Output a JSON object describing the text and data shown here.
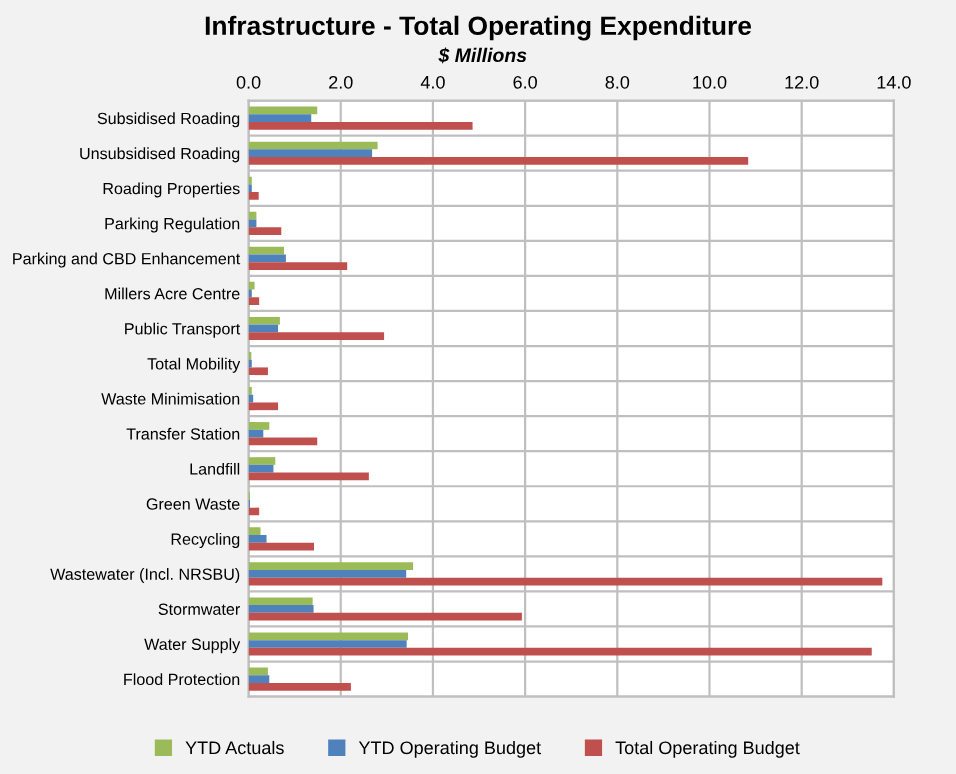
{
  "chart_data": {
    "type": "bar",
    "orientation": "horizontal",
    "title": "Infrastructure - Total Operating Expenditure",
    "xlabel": "$ Millions",
    "categories": [
      "Subsidised Roading",
      "Unsubsidised Roading",
      "Roading Properties",
      "Parking Regulation",
      "Parking and CBD Enhancement",
      "Millers Acre Centre",
      "Public Transport",
      "Total Mobility",
      "Waste Minimisation",
      "Transfer Station",
      "Landfill",
      "Green Waste",
      "Recycling",
      "Wastewater (Incl. NRSBU)",
      "Stormwater",
      "Water Supply",
      "Flood Protection"
    ],
    "series": [
      {
        "name": "YTD Actuals",
        "color": "#9bbb59",
        "values": [
          1.49,
          2.8,
          0.07,
          0.17,
          0.77,
          0.13,
          0.68,
          0.06,
          0.07,
          0.45,
          0.58,
          0.03,
          0.26,
          3.57,
          1.39,
          3.46,
          0.42
        ]
      },
      {
        "name": "YTD Operating Budget",
        "color": "#4f81bd",
        "values": [
          1.36,
          2.68,
          0.07,
          0.17,
          0.81,
          0.07,
          0.64,
          0.07,
          0.1,
          0.32,
          0.54,
          0.03,
          0.39,
          3.42,
          1.41,
          3.43,
          0.45
        ]
      },
      {
        "name": "Total Operating Budget",
        "color": "#c0504d",
        "values": [
          4.86,
          10.84,
          0.22,
          0.71,
          2.14,
          0.23,
          2.94,
          0.42,
          0.64,
          1.49,
          2.61,
          0.23,
          1.42,
          13.75,
          5.93,
          13.52,
          2.22
        ]
      }
    ],
    "xlim": [
      0,
      14
    ],
    "xticks": [
      {
        "value": 0,
        "label": "0.0"
      },
      {
        "value": 2,
        "label": "2.0"
      },
      {
        "value": 4,
        "label": "4.0"
      },
      {
        "value": 6,
        "label": "6.0"
      },
      {
        "value": 8,
        "label": "8.0"
      },
      {
        "value": 10,
        "label": "10.0"
      },
      {
        "value": 12,
        "label": "12.0"
      },
      {
        "value": 14,
        "label": "14.0"
      }
    ],
    "grid": true,
    "legend": "bottom"
  }
}
